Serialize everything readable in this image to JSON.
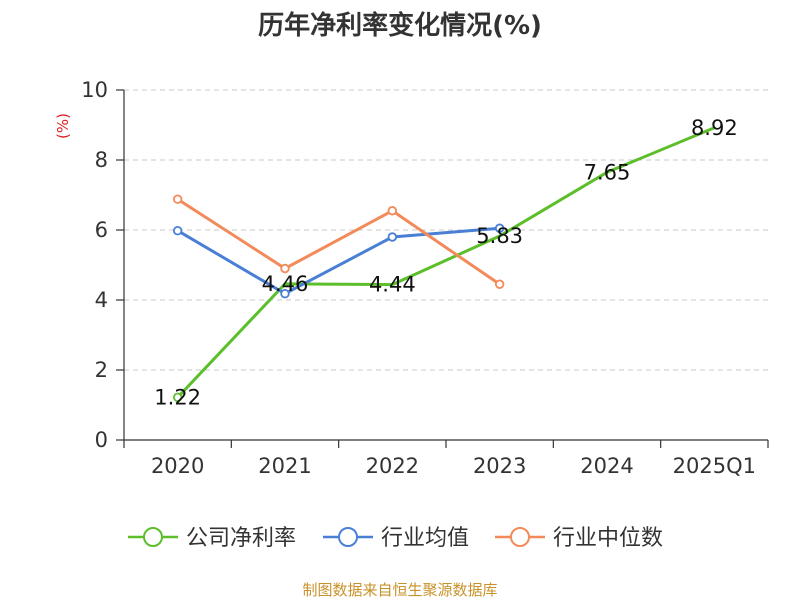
{
  "chart_data": {
    "type": "line",
    "title": "历年净利率变化情况(%)",
    "ylabel": "(%)",
    "categories": [
      "2020",
      "2021",
      "2022",
      "2023",
      "2024",
      "2025Q1"
    ],
    "ylim": [
      0,
      10
    ],
    "yticks": [
      0,
      2,
      4,
      6,
      8,
      10
    ],
    "grid": true,
    "legend_position": "bottom",
    "series": [
      {
        "name": "公司净利率",
        "color": "#5cbf2a",
        "values": [
          1.22,
          4.46,
          4.44,
          5.83,
          7.65,
          8.92
        ],
        "data_labels": [
          "1.22",
          "4.46",
          "4.44",
          "5.83",
          "7.65",
          "8.92"
        ],
        "show_markers": [
          true,
          false,
          false,
          false,
          false,
          false
        ]
      },
      {
        "name": "行业均值",
        "color": "#4a7fd6",
        "values": [
          5.98,
          4.18,
          5.8,
          6.05,
          null,
          null
        ]
      },
      {
        "name": "行业中位数",
        "color": "#f28a5a",
        "values": [
          6.88,
          4.9,
          6.55,
          4.45,
          null,
          null
        ]
      }
    ],
    "source_note": "制图数据来自恒生聚源数据库"
  }
}
